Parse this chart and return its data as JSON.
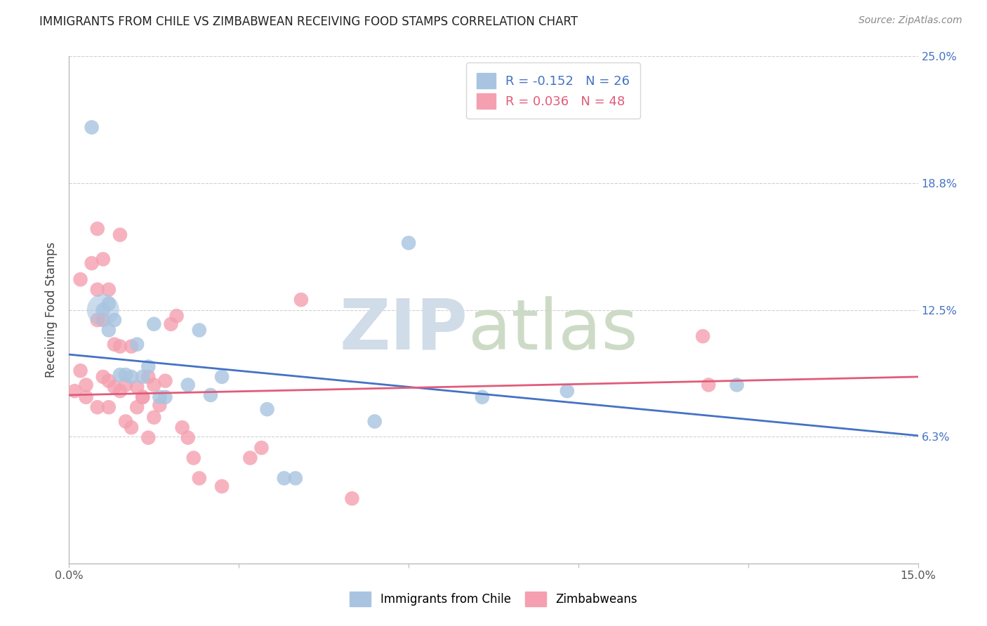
{
  "title": "IMMIGRANTS FROM CHILE VS ZIMBABWEAN RECEIVING FOOD STAMPS CORRELATION CHART",
  "source": "Source: ZipAtlas.com",
  "ylabel_label": "Receiving Food Stamps",
  "xlim": [
    0,
    0.15
  ],
  "ylim": [
    0,
    0.25
  ],
  "ytick_values": [
    0.0,
    0.0625,
    0.125,
    0.1875,
    0.25
  ],
  "ytick_labels": [
    "",
    "6.3%",
    "12.5%",
    "18.8%",
    "25.0%"
  ],
  "chile_color": "#a8c4e0",
  "zimbabwe_color": "#f4a0b0",
  "chile_line_color": "#4472c4",
  "zimbabwe_line_color": "#e05c7a",
  "legend_chile_R": "-0.152",
  "legend_chile_N": "26",
  "legend_zimbabwe_R": "0.036",
  "legend_zimbabwe_N": "48",
  "background_color": "#ffffff",
  "grid_color": "#d0d0d0",
  "chile_x": [
    0.004,
    0.006,
    0.007,
    0.007,
    0.008,
    0.009,
    0.01,
    0.011,
    0.012,
    0.013,
    0.014,
    0.015,
    0.016,
    0.017,
    0.021,
    0.023,
    0.025,
    0.027,
    0.035,
    0.038,
    0.04,
    0.054,
    0.06,
    0.073,
    0.088,
    0.118
  ],
  "chile_y": [
    0.215,
    0.125,
    0.128,
    0.115,
    0.12,
    0.093,
    0.093,
    0.092,
    0.108,
    0.092,
    0.097,
    0.118,
    0.082,
    0.082,
    0.088,
    0.115,
    0.083,
    0.092,
    0.076,
    0.042,
    0.042,
    0.07,
    0.158,
    0.082,
    0.085,
    0.088
  ],
  "zimbabwe_x": [
    0.001,
    0.002,
    0.002,
    0.003,
    0.003,
    0.004,
    0.005,
    0.005,
    0.005,
    0.005,
    0.006,
    0.006,
    0.006,
    0.007,
    0.007,
    0.007,
    0.008,
    0.008,
    0.009,
    0.009,
    0.009,
    0.01,
    0.01,
    0.011,
    0.011,
    0.012,
    0.012,
    0.013,
    0.013,
    0.014,
    0.014,
    0.015,
    0.015,
    0.016,
    0.017,
    0.018,
    0.019,
    0.02,
    0.021,
    0.022,
    0.023,
    0.027,
    0.032,
    0.034,
    0.041,
    0.05,
    0.112,
    0.113
  ],
  "zimbabwe_y": [
    0.085,
    0.14,
    0.095,
    0.088,
    0.082,
    0.148,
    0.165,
    0.135,
    0.12,
    0.077,
    0.15,
    0.12,
    0.092,
    0.135,
    0.09,
    0.077,
    0.108,
    0.087,
    0.162,
    0.107,
    0.085,
    0.088,
    0.07,
    0.107,
    0.067,
    0.087,
    0.077,
    0.082,
    0.082,
    0.092,
    0.062,
    0.088,
    0.072,
    0.078,
    0.09,
    0.118,
    0.122,
    0.067,
    0.062,
    0.052,
    0.042,
    0.038,
    0.052,
    0.057,
    0.13,
    0.032,
    0.112,
    0.088
  ],
  "chile_line_x0": 0.0,
  "chile_line_y0": 0.103,
  "chile_line_x1": 0.15,
  "chile_line_y1": 0.063,
  "zimbabwe_line_x0": 0.0,
  "zimbabwe_line_y0": 0.083,
  "zimbabwe_line_x1": 0.15,
  "zimbabwe_line_y1": 0.092
}
